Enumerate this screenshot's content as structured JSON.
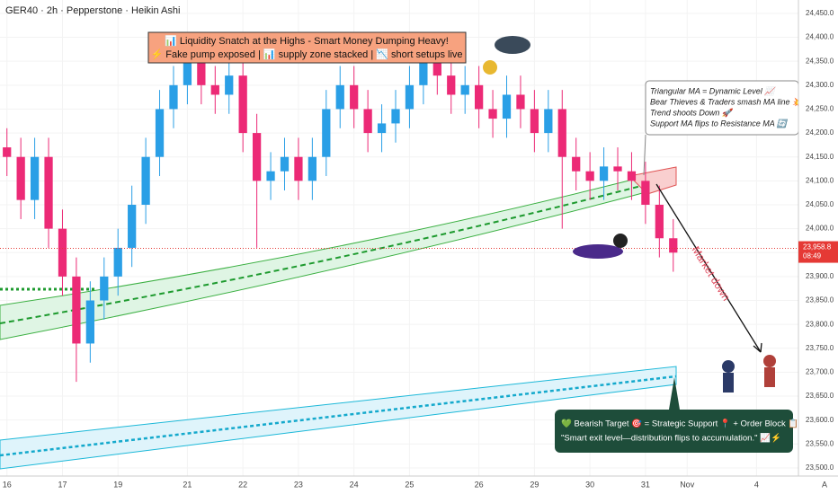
{
  "chart_data": {
    "type": "candlestick",
    "title": "GER40 · 2h · Pepperstone · Heikin Ashi",
    "categories": [
      "16",
      null,
      null,
      null,
      "17",
      null,
      null,
      null,
      "19",
      null,
      null,
      null,
      null,
      "21",
      null,
      null,
      null,
      "22",
      null,
      null,
      null,
      "23",
      null,
      null,
      null,
      "24",
      null,
      null,
      null,
      "25",
      null,
      null,
      null,
      null,
      "26",
      null,
      null,
      null,
      "29",
      null,
      null,
      null,
      "30",
      null,
      null,
      null,
      "31",
      null,
      null,
      "Nov",
      null,
      null,
      null,
      null,
      "4",
      null,
      null
    ],
    "open": [
      24170,
      24150,
      24060,
      24150,
      24000,
      23900,
      23760,
      23850,
      23900,
      23960,
      24050,
      24150,
      24250,
      24300,
      24350,
      24300,
      24280,
      24320,
      24200,
      24100,
      24120,
      24150,
      24100,
      24150,
      24250,
      24300,
      24250,
      24200,
      24220,
      24250,
      24300,
      24350,
      24320,
      24280,
      24300,
      24250,
      24230,
      24280,
      24250,
      24200,
      24250,
      24150,
      24120,
      24100,
      24130,
      24120,
      24100,
      24050,
      23980,
      null,
      null,
      null,
      null,
      null,
      null,
      null,
      null
    ],
    "high": [
      24210,
      24190,
      24190,
      24190,
      24040,
      23940,
      23890,
      23940,
      24000,
      24090,
      24190,
      24290,
      24340,
      24390,
      24390,
      24340,
      24360,
      24360,
      24240,
      24160,
      24190,
      24190,
      24190,
      24290,
      24340,
      24340,
      24290,
      24260,
      24290,
      24340,
      24390,
      24390,
      24360,
      24340,
      24340,
      24290,
      24320,
      24320,
      24290,
      24290,
      24290,
      24190,
      24160,
      24170,
      24170,
      24160,
      24140,
      24090,
      24020,
      null,
      null,
      null,
      null,
      null,
      null,
      null,
      null
    ],
    "low": [
      24110,
      24020,
      24020,
      23960,
      23860,
      23680,
      23720,
      23810,
      23860,
      23920,
      24010,
      24110,
      24210,
      24260,
      24260,
      24240,
      24240,
      24160,
      23960,
      24060,
      24080,
      24060,
      24060,
      24110,
      24210,
      24210,
      24160,
      24160,
      24180,
      24210,
      24260,
      24280,
      24240,
      24240,
      24210,
      24190,
      24190,
      24210,
      24160,
      24160,
      24000,
      24080,
      24060,
      24060,
      24080,
      24060,
      24010,
      23940,
      23910,
      null,
      null,
      null,
      null,
      null,
      null,
      null,
      null
    ],
    "close": [
      24150,
      24060,
      24150,
      24000,
      23900,
      23760,
      23850,
      23900,
      23960,
      24050,
      24150,
      24250,
      24300,
      24350,
      24300,
      24280,
      24320,
      24200,
      24100,
      24120,
      24150,
      24100,
      24150,
      24250,
      24300,
      24250,
      24200,
      24220,
      24250,
      24300,
      24350,
      24320,
      24280,
      24300,
      24250,
      24230,
      24280,
      24250,
      24200,
      24250,
      24150,
      24120,
      24100,
      24130,
      24120,
      24100,
      24050,
      23980,
      23950,
      null,
      null,
      null,
      null,
      null,
      null,
      null,
      null
    ],
    "up_color": "#2a9fe6",
    "down_color": "#ec2a76",
    "ylim": [
      23483,
      24478
    ],
    "yticks": [
      {
        "value": 24450,
        "label": "24,450.0"
      },
      {
        "value": 24400,
        "label": "24,400.0"
      },
      {
        "value": 24350,
        "label": "24,350.0"
      },
      {
        "value": 24300,
        "label": "24,300.0"
      },
      {
        "value": 24250,
        "label": "24,250.0"
      },
      {
        "value": 24200,
        "label": "24,200.0"
      },
      {
        "value": 24150,
        "label": "24,150.0"
      },
      {
        "value": 24100,
        "label": "24,100.0"
      },
      {
        "value": 24050,
        "label": "24,050.0"
      },
      {
        "value": 24000,
        "label": "24,000.0"
      },
      {
        "value": 23950,
        "label": "23,950.0"
      },
      {
        "value": 23900,
        "label": "23,900.0"
      },
      {
        "value": 23850,
        "label": "23,850.0"
      },
      {
        "value": 23800,
        "label": "23,800.0"
      },
      {
        "value": 23750,
        "label": "23,750.0"
      },
      {
        "value": 23700,
        "label": "23,700.0"
      },
      {
        "value": 23650,
        "label": "23,650.0"
      },
      {
        "value": 23600,
        "label": "23,600.0"
      },
      {
        "value": 23550,
        "label": "23,550.0"
      },
      {
        "value": 23500,
        "label": "23,500.0"
      }
    ],
    "current_price": {
      "value": 23958.8,
      "label": "23,958.8"
    },
    "countdown": "08:49",
    "axis_mode": "A",
    "annotations": {
      "banner": [
        "📊 Liquidity Snatch at the Highs - Smart Money Dumping Heavy!",
        "⚡ Fake pump exposed | 📊 supply zone stacked | 📉 short setups live"
      ],
      "callout": [
        "Triangular MA = Dynamic Level 📈",
        "Bear Thieves & Traders smash MA line 💥",
        "Trend shoots Down 🚀",
        "Support MA flips to Resistance MA 🔄"
      ],
      "target": [
        "💚 Bearish Target 🎯 = Strategic Support 📍 + Order Block 📋",
        "\"Smart exit level—distribution flips to accumulation.\" 📈⚡"
      ],
      "arrow_label": "Market down"
    }
  }
}
